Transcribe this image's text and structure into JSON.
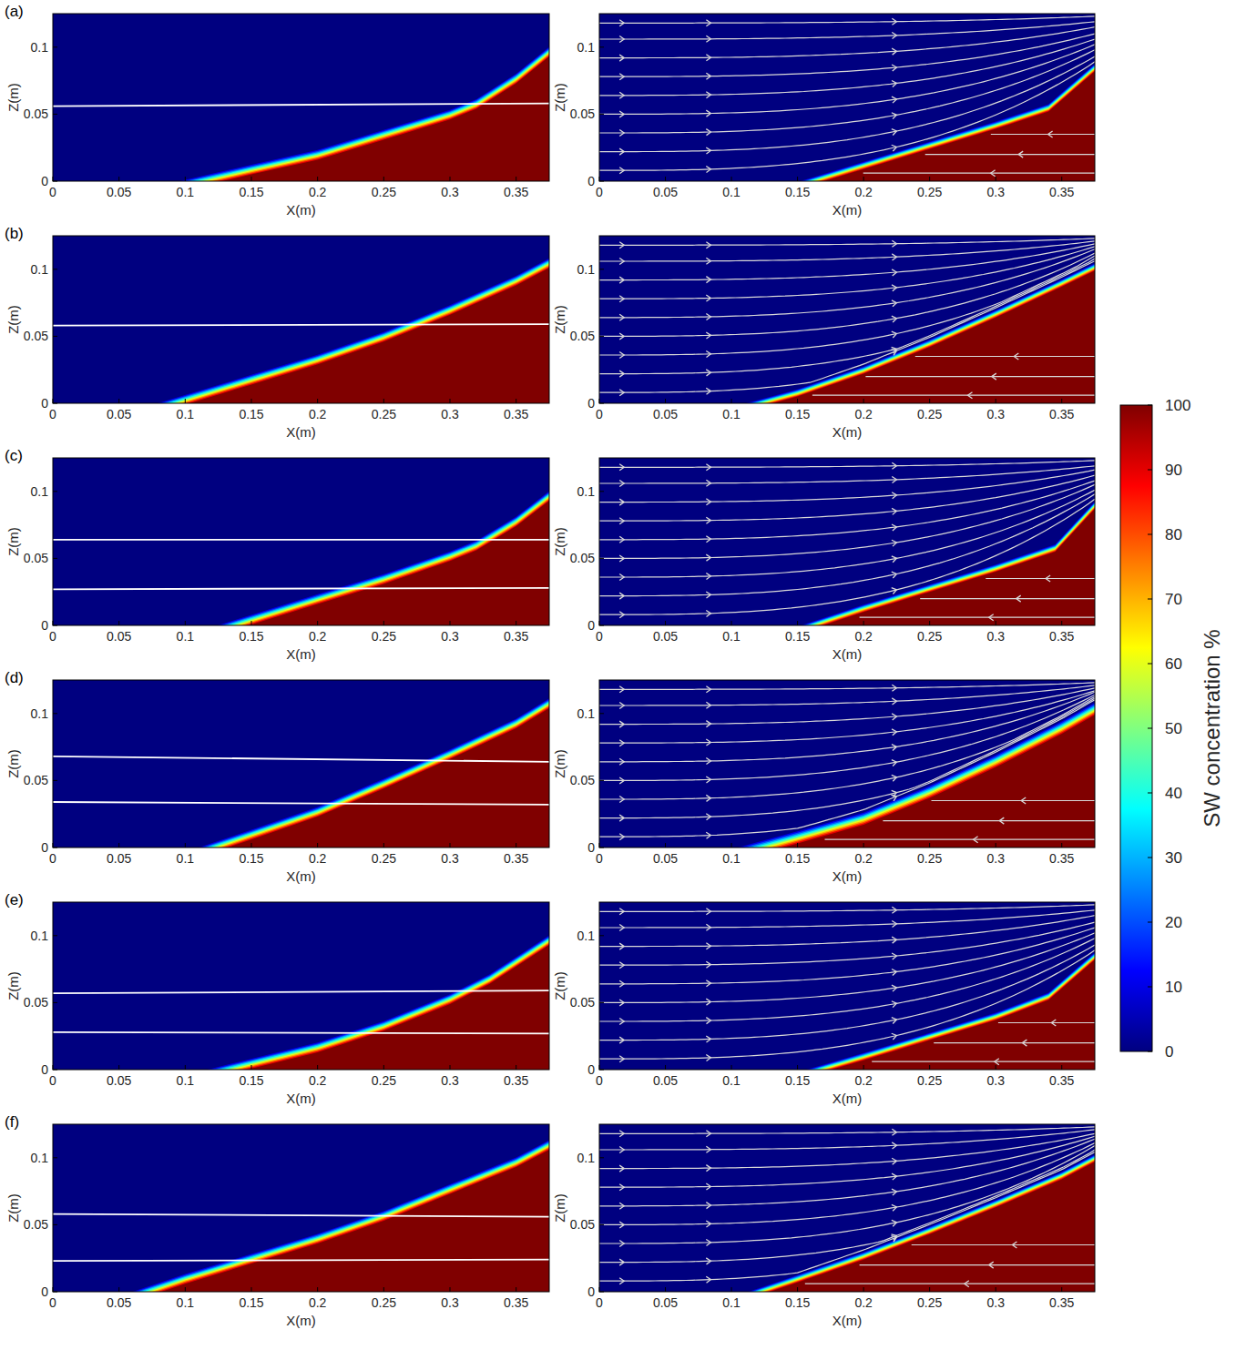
{
  "chart_data": [
    {
      "type": "contour",
      "panel_label": "(a)",
      "x_label": "X(m)",
      "y_label": "Z(m)",
      "xlim": [
        0,
        0.375
      ],
      "ylim": [
        0,
        0.125
      ],
      "xticks": [
        0,
        0.05,
        0.1,
        0.15,
        0.2,
        0.25,
        0.3,
        0.35
      ],
      "yticks": [
        0,
        0.05,
        0.1
      ],
      "interface": {
        "x": [
          0.11,
          0.15,
          0.2,
          0.25,
          0.3,
          0.32,
          0.35,
          0.375
        ],
        "z": [
          0,
          0.009,
          0.02,
          0.035,
          0.05,
          0.058,
          0.077,
          0.097
        ]
      },
      "mixing_width": 0.008,
      "white_lines": [
        {
          "x": [
            0,
            0.375
          ],
          "z": [
            0.056,
            0.058
          ]
        }
      ]
    },
    {
      "type": "contour",
      "x_label": "X(m)",
      "y_label": "Z(m)",
      "xlim": [
        0,
        0.375
      ],
      "ylim": [
        0,
        0.125
      ],
      "xticks": [
        0,
        0.05,
        0.1,
        0.15,
        0.2,
        0.25,
        0.3,
        0.35
      ],
      "yticks": [
        0,
        0.05,
        0.1
      ],
      "interface": {
        "x": [
          0.16,
          0.2,
          0.25,
          0.3,
          0.34,
          0.375
        ],
        "z": [
          0,
          0.012,
          0.027,
          0.042,
          0.055,
          0.085
        ]
      },
      "mixing_width": 0.006,
      "streamlines": {
        "start_z": [
          0.008,
          0.022,
          0.036,
          0.05,
          0.064,
          0.078,
          0.092,
          0.106,
          0.118
        ],
        "end_z": [
          0.089,
          0.093,
          0.098,
          0.102,
          0.106,
          0.11,
          0.115,
          0.119,
          0.123
        ]
      },
      "saltwater_streamlines": {
        "start_z": [
          0.006,
          0.02,
          0.035
        ]
      }
    },
    {
      "type": "contour",
      "panel_label": "(b)",
      "x_label": "X(m)",
      "y_label": "Z(m)",
      "xlim": [
        0,
        0.375
      ],
      "ylim": [
        0,
        0.125
      ],
      "xticks": [
        0,
        0.05,
        0.1,
        0.15,
        0.2,
        0.25,
        0.3,
        0.35
      ],
      "yticks": [
        0,
        0.05,
        0.1
      ],
      "interface": {
        "x": [
          0.09,
          0.15,
          0.2,
          0.25,
          0.3,
          0.35,
          0.375
        ],
        "z": [
          0,
          0.018,
          0.033,
          0.05,
          0.07,
          0.092,
          0.105
        ]
      },
      "mixing_width": 0.008,
      "white_lines": [
        {
          "x": [
            0,
            0.375
          ],
          "z": [
            0.058,
            0.059
          ]
        }
      ]
    },
    {
      "type": "contour",
      "x_label": "X(m)",
      "y_label": "Z(m)",
      "xlim": [
        0,
        0.375
      ],
      "ylim": [
        0,
        0.125
      ],
      "xticks": [
        0,
        0.05,
        0.1,
        0.15,
        0.2,
        0.25,
        0.3,
        0.35
      ],
      "yticks": [
        0,
        0.05,
        0.1
      ],
      "interface": {
        "x": [
          0.12,
          0.15,
          0.2,
          0.25,
          0.3,
          0.35,
          0.375
        ],
        "z": [
          0,
          0.008,
          0.025,
          0.045,
          0.067,
          0.09,
          0.102
        ]
      },
      "mixing_width": 0.006,
      "streamlines": {
        "start_z": [
          0.008,
          0.022,
          0.036,
          0.05,
          0.064,
          0.078,
          0.092,
          0.106,
          0.118
        ],
        "end_z": [
          0.106,
          0.108,
          0.11,
          0.112,
          0.115,
          0.117,
          0.119,
          0.121,
          0.123
        ]
      },
      "saltwater_streamlines": {
        "start_z": [
          0.006,
          0.02,
          0.035
        ]
      }
    },
    {
      "type": "contour",
      "panel_label": "(c)",
      "x_label": "X(m)",
      "y_label": "Z(m)",
      "xlim": [
        0,
        0.375
      ],
      "ylim": [
        0,
        0.125
      ],
      "xticks": [
        0,
        0.05,
        0.1,
        0.15,
        0.2,
        0.25,
        0.3,
        0.35
      ],
      "yticks": [
        0,
        0.05,
        0.1
      ],
      "interface": {
        "x": [
          0.135,
          0.2,
          0.25,
          0.3,
          0.32,
          0.35,
          0.375
        ],
        "z": [
          0,
          0.02,
          0.035,
          0.052,
          0.06,
          0.078,
          0.097
        ]
      },
      "mixing_width": 0.008,
      "white_lines": [
        {
          "x": [
            0,
            0.375
          ],
          "z": [
            0.064,
            0.064
          ]
        },
        {
          "x": [
            0,
            0.375
          ],
          "z": [
            0.027,
            0.028
          ]
        }
      ]
    },
    {
      "type": "contour",
      "x_label": "X(m)",
      "y_label": "Z(m)",
      "xlim": [
        0,
        0.375
      ],
      "ylim": [
        0,
        0.125
      ],
      "xticks": [
        0,
        0.05,
        0.1,
        0.15,
        0.2,
        0.25,
        0.3,
        0.35
      ],
      "yticks": [
        0,
        0.05,
        0.1
      ],
      "interface": {
        "x": [
          0.16,
          0.2,
          0.25,
          0.3,
          0.345,
          0.375
        ],
        "z": [
          0,
          0.013,
          0.028,
          0.043,
          0.058,
          0.09
        ]
      },
      "mixing_width": 0.006,
      "streamlines": {
        "start_z": [
          0.008,
          0.022,
          0.036,
          0.05,
          0.064,
          0.078,
          0.092,
          0.106,
          0.118
        ],
        "end_z": [
          0.094,
          0.098,
          0.101,
          0.105,
          0.108,
          0.112,
          0.116,
          0.119,
          0.123
        ]
      },
      "saltwater_streamlines": {
        "start_z": [
          0.006,
          0.02,
          0.035
        ]
      }
    },
    {
      "type": "contour",
      "panel_label": "(d)",
      "x_label": "X(m)",
      "y_label": "Z(m)",
      "xlim": [
        0,
        0.375
      ],
      "ylim": [
        0,
        0.125
      ],
      "xticks": [
        0,
        0.05,
        0.1,
        0.15,
        0.2,
        0.25,
        0.3,
        0.35
      ],
      "yticks": [
        0,
        0.05,
        0.1
      ],
      "interface": {
        "x": [
          0.12,
          0.15,
          0.2,
          0.25,
          0.3,
          0.35,
          0.375
        ],
        "z": [
          0,
          0.01,
          0.027,
          0.048,
          0.07,
          0.093,
          0.108
        ]
      },
      "mixing_width": 0.008,
      "white_lines": [
        {
          "x": [
            0,
            0.375
          ],
          "z": [
            0.068,
            0.064
          ]
        },
        {
          "x": [
            0,
            0.375
          ],
          "z": [
            0.034,
            0.032
          ]
        }
      ]
    },
    {
      "type": "contour",
      "x_label": "X(m)",
      "y_label": "Z(m)",
      "xlim": [
        0,
        0.375
      ],
      "ylim": [
        0,
        0.125
      ],
      "xticks": [
        0,
        0.05,
        0.1,
        0.15,
        0.2,
        0.25,
        0.3,
        0.35
      ],
      "yticks": [
        0,
        0.05,
        0.1
      ],
      "interface": {
        "x": [
          0.12,
          0.15,
          0.2,
          0.25,
          0.3,
          0.35,
          0.375
        ],
        "z": [
          0,
          0.008,
          0.022,
          0.042,
          0.065,
          0.09,
          0.104
        ]
      },
      "mixing_width": 0.01,
      "streamlines": {
        "start_z": [
          0.008,
          0.022,
          0.036,
          0.05,
          0.064,
          0.078,
          0.092,
          0.106,
          0.118
        ],
        "end_z": [
          0.108,
          0.11,
          0.112,
          0.114,
          0.116,
          0.117,
          0.119,
          0.121,
          0.123
        ]
      },
      "saltwater_streamlines": {
        "start_z": [
          0.006,
          0.02,
          0.035
        ]
      }
    },
    {
      "type": "contour",
      "panel_label": "(e)",
      "x_label": "X(m)",
      "y_label": "Z(m)",
      "xlim": [
        0,
        0.375
      ],
      "ylim": [
        0,
        0.125
      ],
      "xticks": [
        0,
        0.05,
        0.1,
        0.15,
        0.2,
        0.25,
        0.3,
        0.35
      ],
      "yticks": [
        0,
        0.05,
        0.1
      ],
      "interface": {
        "x": [
          0.13,
          0.2,
          0.25,
          0.3,
          0.33,
          0.375
        ],
        "z": [
          0,
          0.017,
          0.033,
          0.053,
          0.068,
          0.097
        ]
      },
      "mixing_width": 0.008,
      "white_lines": [
        {
          "x": [
            0,
            0.375
          ],
          "z": [
            0.057,
            0.059
          ]
        },
        {
          "x": [
            0,
            0.375
          ],
          "z": [
            0.028,
            0.027
          ]
        }
      ]
    },
    {
      "type": "contour",
      "x_label": "X(m)",
      "y_label": "Z(m)",
      "xlim": [
        0,
        0.375
      ],
      "ylim": [
        0,
        0.125
      ],
      "xticks": [
        0,
        0.05,
        0.1,
        0.15,
        0.2,
        0.25,
        0.3,
        0.35
      ],
      "yticks": [
        0,
        0.05,
        0.1
      ],
      "interface": {
        "x": [
          0.165,
          0.2,
          0.25,
          0.3,
          0.34,
          0.375
        ],
        "z": [
          0,
          0.01,
          0.025,
          0.04,
          0.055,
          0.085
        ]
      },
      "mixing_width": 0.006,
      "streamlines": {
        "start_z": [
          0.008,
          0.022,
          0.036,
          0.05,
          0.064,
          0.078,
          0.092,
          0.106,
          0.118
        ],
        "end_z": [
          0.089,
          0.093,
          0.098,
          0.102,
          0.106,
          0.11,
          0.115,
          0.119,
          0.123
        ]
      },
      "saltwater_streamlines": {
        "start_z": [
          0.006,
          0.02,
          0.035
        ]
      }
    },
    {
      "type": "contour",
      "panel_label": "(f)",
      "x_label": "X(m)",
      "y_label": "Z(m)",
      "xlim": [
        0,
        0.375
      ],
      "ylim": [
        0,
        0.125
      ],
      "xticks": [
        0,
        0.05,
        0.1,
        0.15,
        0.2,
        0.25,
        0.3,
        0.35
      ],
      "yticks": [
        0,
        0.05,
        0.1
      ],
      "interface": {
        "x": [
          0.07,
          0.1,
          0.15,
          0.2,
          0.25,
          0.3,
          0.35,
          0.375
        ],
        "z": [
          0,
          0.01,
          0.025,
          0.04,
          0.057,
          0.077,
          0.097,
          0.11
        ]
      },
      "mixing_width": 0.008,
      "white_lines": [
        {
          "x": [
            0,
            0.375
          ],
          "z": [
            0.058,
            0.056
          ]
        },
        {
          "x": [
            0,
            0.375
          ],
          "z": [
            0.023,
            0.024
          ]
        }
      ]
    },
    {
      "type": "contour",
      "x_label": "X(m)",
      "y_label": "Z(m)",
      "xlim": [
        0,
        0.375
      ],
      "ylim": [
        0,
        0.125
      ],
      "xticks": [
        0,
        0.05,
        0.1,
        0.15,
        0.2,
        0.25,
        0.3,
        0.35
      ],
      "yticks": [
        0,
        0.05,
        0.1
      ],
      "interface": {
        "x": [
          0.12,
          0.15,
          0.2,
          0.25,
          0.3,
          0.35,
          0.375
        ],
        "z": [
          0,
          0.01,
          0.027,
          0.046,
          0.066,
          0.087,
          0.1
        ]
      },
      "mixing_width": 0.006,
      "streamlines": {
        "start_z": [
          0.008,
          0.022,
          0.036,
          0.05,
          0.064,
          0.078,
          0.092,
          0.106,
          0.118
        ],
        "end_z": [
          0.104,
          0.106,
          0.109,
          0.111,
          0.114,
          0.116,
          0.118,
          0.121,
          0.123
        ]
      },
      "saltwater_streamlines": {
        "start_z": [
          0.006,
          0.02,
          0.035
        ]
      }
    }
  ],
  "colorbar": {
    "label": "SW concentration %",
    "range": [
      0,
      100
    ],
    "ticks": [
      0,
      10,
      20,
      30,
      40,
      50,
      60,
      70,
      80,
      90,
      100
    ]
  }
}
